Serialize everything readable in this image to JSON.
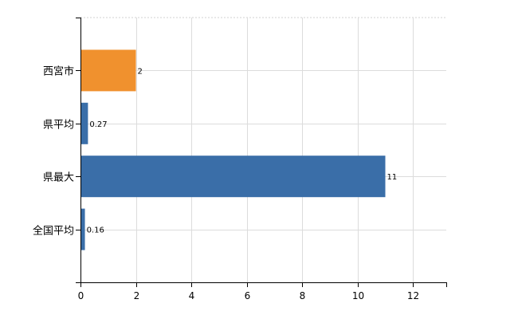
{
  "chart_data": {
    "type": "bar",
    "orientation": "horizontal",
    "categories": [
      "西宮市",
      "県平均",
      "県最大",
      "全国平均"
    ],
    "values": [
      2,
      0.27,
      11,
      0.16
    ],
    "value_labels": [
      "2",
      "0.27",
      "11",
      "0.16"
    ],
    "bar_colors": [
      "#f0912e",
      "#3a6ea8",
      "#3a6ea8",
      "#3a6ea8"
    ],
    "xlim": [
      0,
      13.2
    ],
    "xticks": [
      0,
      2,
      4,
      6,
      8,
      10,
      12
    ],
    "xtick_labels": [
      "0",
      "2",
      "4",
      "6",
      "8",
      "10",
      "12"
    ],
    "grid": true,
    "title": "",
    "xlabel": "",
    "ylabel": ""
  }
}
